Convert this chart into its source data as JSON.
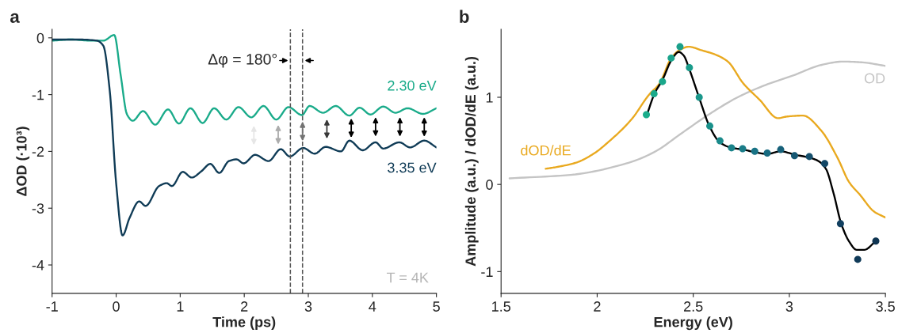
{
  "chart_data": [
    {
      "type": "line",
      "title": "a",
      "xlabel": "Time (ps)",
      "ylabel": "ΔOD (·10³)",
      "xlim": [
        -1,
        5
      ],
      "ylim": [
        -4.5,
        0.15
      ],
      "xticks": [
        -1,
        0,
        1,
        2,
        3,
        4,
        5
      ],
      "yticks": [
        0,
        -1,
        -2,
        -3,
        -4
      ],
      "grid": false,
      "legend": false,
      "series": [
        {
          "name": "2.30 eV",
          "color": "#1aab8a",
          "x": [
            -1,
            -0.7,
            -0.4,
            -0.2,
            -0.03,
            0.07,
            0.17,
            0.26,
            0.42,
            0.61,
            0.81,
            0.98,
            1.16,
            1.35,
            1.53,
            1.72,
            1.91,
            2.11,
            2.3,
            2.5,
            2.69,
            2.9,
            3.02,
            3.23,
            3.43,
            3.64,
            3.8,
            3.97,
            4.17,
            4.36,
            4.55,
            4.79,
            5.0
          ],
          "values": [
            -0.05,
            -0.03,
            -0.05,
            -0.05,
            0.05,
            -0.65,
            -1.35,
            -1.46,
            -1.29,
            -1.53,
            -1.26,
            -1.51,
            -1.24,
            -1.5,
            -1.24,
            -1.44,
            -1.22,
            -1.4,
            -1.2,
            -1.44,
            -1.22,
            -1.36,
            -1.2,
            -1.32,
            -1.2,
            -1.37,
            -1.23,
            -1.35,
            -1.21,
            -1.32,
            -1.24,
            -1.34,
            -1.24
          ]
        },
        {
          "name": "3.35 eV",
          "color": "#0f3b56",
          "x": [
            -1,
            -0.6,
            -0.3,
            -0.2,
            -0.1,
            0.0,
            0.1,
            0.21,
            0.36,
            0.46,
            0.67,
            0.79,
            0.87,
            1.04,
            1.18,
            1.33,
            1.47,
            1.61,
            1.76,
            1.88,
            1.99,
            2.17,
            2.38,
            2.57,
            2.71,
            2.92,
            3.1,
            3.27,
            3.51,
            3.64,
            3.85,
            4.05,
            4.17,
            4.42,
            4.59,
            4.81,
            5.0
          ],
          "values": [
            -0.03,
            -0.03,
            -0.05,
            -0.14,
            -0.93,
            -2.56,
            -3.48,
            -3.17,
            -2.88,
            -2.96,
            -2.61,
            -2.56,
            -2.61,
            -2.36,
            -2.46,
            -2.35,
            -2.22,
            -2.38,
            -2.17,
            -2.14,
            -2.21,
            -2.06,
            -2.17,
            -1.96,
            -2.09,
            -1.94,
            -2.04,
            -1.92,
            -2.0,
            -1.81,
            -1.98,
            -1.84,
            -1.95,
            -1.84,
            -1.93,
            -1.81,
            -1.93
          ]
        }
      ],
      "ref_lines": [
        {
          "axis": "x",
          "value": 2.72,
          "color": "#555555",
          "line_style": "dashed"
        },
        {
          "axis": "x",
          "value": 2.91,
          "color": "#555555",
          "line_style": "dashed"
        }
      ],
      "annotations": [
        "Δφ = 180°",
        "T = 4K"
      ]
    },
    {
      "type": "line",
      "title": "b",
      "xlabel": "Energy (eV)",
      "ylabel": "Amplitude (a.u.) / dOD/dE (a.u.)",
      "xlim": [
        1.5,
        3.5
      ],
      "ylim": [
        -1.25,
        1.78
      ],
      "xticks": [
        1.5,
        2,
        2.5,
        3,
        3.5
      ],
      "yticks": [
        -1,
        0,
        1
      ],
      "grid": false,
      "legend": false,
      "series": [
        {
          "name": "OD",
          "color": "#c4c4c4",
          "x": [
            1.544,
            1.862,
            2.151,
            2.296,
            2.441,
            2.586,
            2.731,
            2.875,
            3.02,
            3.165,
            3.28,
            3.382,
            3.5
          ],
          "values": [
            0.07,
            0.11,
            0.24,
            0.37,
            0.59,
            0.81,
            1.0,
            1.14,
            1.25,
            1.37,
            1.41,
            1.4,
            1.36
          ]
        },
        {
          "name": "dOD/dE",
          "color": "#e9a91f",
          "x": [
            1.732,
            1.79,
            1.89,
            1.98,
            2.06,
            2.18,
            2.27,
            2.325,
            2.383,
            2.427,
            2.477,
            2.542,
            2.615,
            2.68,
            2.76,
            2.846,
            2.941,
            2.991,
            3.071,
            3.165,
            3.252,
            3.31,
            3.368,
            3.44,
            3.5
          ],
          "values": [
            0.18,
            0.2,
            0.25,
            0.35,
            0.49,
            0.75,
            1.03,
            1.16,
            1.44,
            1.54,
            1.58,
            1.54,
            1.49,
            1.41,
            1.16,
            0.97,
            0.76,
            0.78,
            0.79,
            0.62,
            0.3,
            0.03,
            -0.12,
            -0.31,
            -0.38
          ]
        },
        {
          "color": "#000000",
          "x": [
            2.256,
            2.3,
            2.34,
            2.385,
            2.425,
            2.45,
            2.48,
            2.53,
            2.586,
            2.64,
            2.7,
            2.76,
            2.82,
            2.885,
            2.955,
            3.03,
            3.1,
            3.15,
            3.19,
            3.23,
            3.27,
            3.31,
            3.35,
            3.39,
            3.45
          ],
          "values": [
            0.78,
            1.05,
            1.2,
            1.42,
            1.52,
            1.48,
            1.32,
            1.0,
            0.66,
            0.48,
            0.42,
            0.4,
            0.37,
            0.35,
            0.38,
            0.34,
            0.31,
            0.27,
            0.18,
            -0.1,
            -0.45,
            -0.65,
            -0.75,
            -0.75,
            -0.65
          ]
        },
        {
          "type": "scatter",
          "marker": "circle",
          "x": [
            2.256,
            2.296,
            2.34,
            2.385,
            2.431,
            2.48,
            2.531,
            2.586,
            2.639,
            2.699,
            2.757,
            2.82,
            2.885,
            2.955,
            3.027,
            3.104,
            3.184,
            3.266,
            3.356,
            3.45
          ],
          "values": [
            0.8,
            1.04,
            1.18,
            1.45,
            1.58,
            1.34,
            1.0,
            0.67,
            0.5,
            0.42,
            0.41,
            0.38,
            0.36,
            0.4,
            0.33,
            0.32,
            0.24,
            -0.45,
            -0.86,
            -0.65
          ],
          "colors": [
            "#1aad8b",
            "#1aaa8b",
            "#1aa78b",
            "#1aa48b",
            "#1aa08b",
            "#1a9c8b",
            "#1a978b",
            "#1a918b",
            "#1a8a8b",
            "#1a838a",
            "#1a7c88",
            "#197385",
            "#186a80",
            "#17617a",
            "#165873",
            "#154f6c",
            "#134766",
            "#124060",
            "#103a58",
            "#0f3552"
          ]
        }
      ]
    }
  ]
}
